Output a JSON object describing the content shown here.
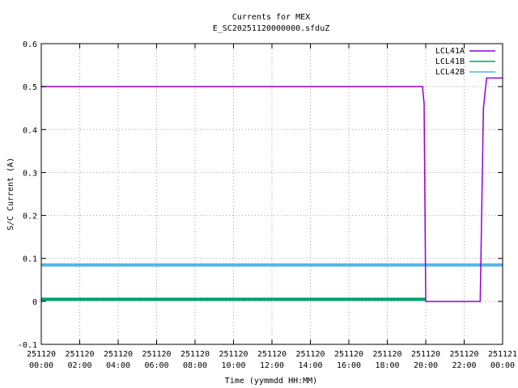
{
  "chart_data": {
    "type": "line",
    "title": "Currents for MEX",
    "subtitle": "E_SC20251120000000.sfduZ",
    "xlabel": "Time (yymmdd HH:MM)",
    "ylabel": "S/C Current (A)",
    "xlim": [
      "2025-11-20 00:00",
      "2025-11-21 00:00"
    ],
    "ylim": [
      -0.1,
      0.6
    ],
    "grid": true,
    "legend_position": "top-right",
    "y_ticks": [
      "-0.1",
      "0",
      "0.1",
      "0.2",
      "0.3",
      "0.4",
      "0.5",
      "0.6"
    ],
    "x_ticks": [
      {
        "date": "251120",
        "time": "00:00"
      },
      {
        "date": "251120",
        "time": "02:00"
      },
      {
        "date": "251120",
        "time": "04:00"
      },
      {
        "date": "251120",
        "time": "06:00"
      },
      {
        "date": "251120",
        "time": "08:00"
      },
      {
        "date": "251120",
        "time": "10:00"
      },
      {
        "date": "251120",
        "time": "12:00"
      },
      {
        "date": "251120",
        "time": "14:00"
      },
      {
        "date": "251120",
        "time": "16:00"
      },
      {
        "date": "251120",
        "time": "18:00"
      },
      {
        "date": "251120",
        "time": "20:00"
      },
      {
        "date": "251120",
        "time": "22:00"
      },
      {
        "date": "251121",
        "time": "00:00"
      }
    ],
    "series": [
      {
        "name": "LCL41A",
        "color": "#9400d3",
        "x": [
          "2025-11-20 00:00",
          "2025-11-20 19:50",
          "2025-11-20 19:55",
          "2025-11-20 20:00",
          "2025-11-20 22:50",
          "2025-11-20 23:00",
          "2025-11-20 23:10",
          "2025-11-21 00:00"
        ],
        "values": [
          0.5,
          0.5,
          0.46,
          0.0,
          0.0,
          0.45,
          0.52,
          0.52
        ]
      },
      {
        "name": "LCL41B",
        "color": "#009e73",
        "x": [
          "2025-11-20 00:00",
          "2025-11-20 20:00"
        ],
        "values": [
          0.005,
          0.005
        ]
      },
      {
        "name": "LCL42B",
        "color": "#56b4e9",
        "x": [
          "2025-11-20 00:00",
          "2025-11-21 00:00"
        ],
        "values": [
          0.085,
          0.085
        ]
      }
    ]
  }
}
